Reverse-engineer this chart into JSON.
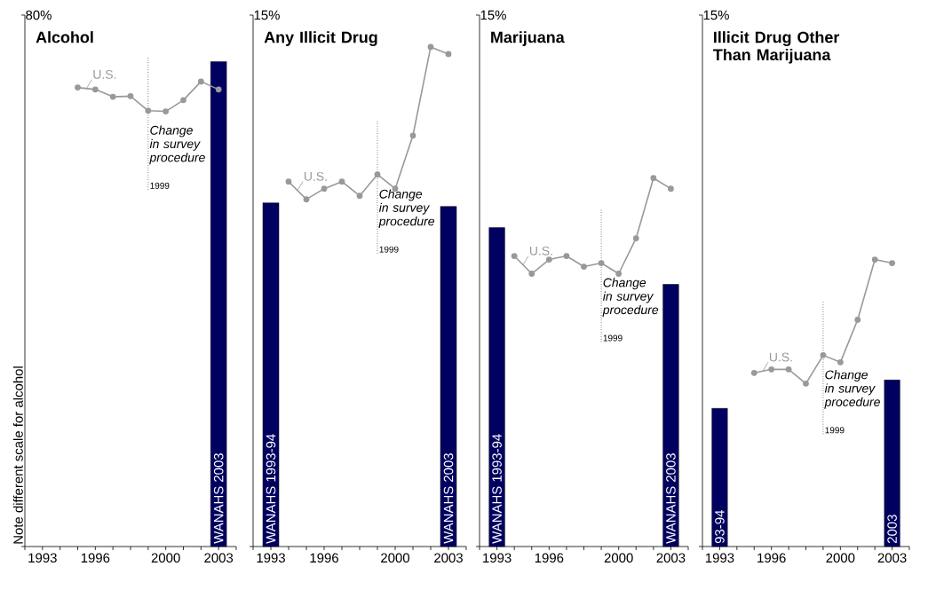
{
  "chart_data": [
    {
      "type": "bar",
      "title": "Alcohol",
      "xlim": [
        1992,
        2004
      ],
      "ylim": [
        0,
        80
      ],
      "xticks": [
        {
          "value": 1992,
          "label": null
        },
        1993,
        {
          "value": 1994,
          "label": null
        },
        {
          "value": 1995,
          "label": null
        },
        1996,
        {
          "value": 1997,
          "label": null
        },
        {
          "value": 1998,
          "label": null
        },
        {
          "value": 1999,
          "label": null
        },
        2000,
        {
          "value": 2001,
          "label": null
        },
        {
          "value": 2002,
          "label": null
        },
        2003,
        {
          "value": 2004,
          "label": null
        }
      ],
      "yticks": [
        {
          "value": 0,
          "label": null
        },
        {
          "value": 80,
          "label": "80%"
        }
      ],
      "marker": "circle",
      "series": [
        {
          "x": [
            2003
          ],
          "values": [
            73.0
          ],
          "color": "#000060"
        },
        {
          "type": "line",
          "name": "U.S.",
          "x": [
            1995,
            1996,
            1997,
            1998,
            1999,
            2000,
            2001,
            2002,
            2003
          ],
          "values": [
            69.1,
            68.8,
            67.7,
            67.8,
            65.6,
            65.5,
            67.2,
            70.0,
            68.8
          ],
          "color": "#999999"
        }
      ],
      "ref_lines": [
        {
          "axis": "x",
          "value": 1999,
          "label": "1999",
          "line_style": "dotted"
        }
      ],
      "annotations": [
        {
          "text": "Change in survey procedure",
          "x": 1999
        },
        {
          "text": "WANAHS 2003",
          "x": 2003,
          "y": 0
        },
        "Note different scale for alcohol"
      ]
    },
    {
      "type": "bar",
      "title": "Any Illicit Drug",
      "xlim": [
        1992,
        2004
      ],
      "ylim": [
        0,
        15
      ],
      "xticks": [
        {
          "value": 1992,
          "label": null
        },
        1993,
        {
          "value": 1994,
          "label": null
        },
        {
          "value": 1995,
          "label": null
        },
        1996,
        {
          "value": 1997,
          "label": null
        },
        {
          "value": 1998,
          "label": null
        },
        {
          "value": 1999,
          "label": null
        },
        2000,
        {
          "value": 2001,
          "label": null
        },
        {
          "value": 2002,
          "label": null
        },
        2003,
        {
          "value": 2004,
          "label": null
        }
      ],
      "yticks": [
        {
          "value": 0,
          "label": null
        },
        {
          "value": 15,
          "label": "15%"
        }
      ],
      "marker": "circle",
      "series": [
        {
          "x": [
            1993,
            2003
          ],
          "values": [
            9.7,
            9.6
          ],
          "color": "#000060"
        },
        {
          "type": "line",
          "name": "U.S.",
          "x": [
            1994,
            1995,
            1996,
            1997,
            1998,
            1999,
            2000,
            2001,
            2002,
            2003
          ],
          "values": [
            10.3,
            9.8,
            10.1,
            10.3,
            9.9,
            10.5,
            10.1,
            11.6,
            14.1,
            13.9
          ],
          "color": "#999999"
        }
      ],
      "ref_lines": [
        {
          "axis": "x",
          "value": 1999,
          "label": "1999",
          "line_style": "dotted"
        }
      ],
      "annotations": [
        {
          "text": "Change in survey procedure",
          "x": 1999
        },
        {
          "text": "WANAHS 1993-94",
          "x": 1993,
          "y": 0
        },
        {
          "text": "WANAHS 2003",
          "x": 2003,
          "y": 0
        }
      ]
    },
    {
      "type": "bar",
      "title": "Marijuana",
      "xlim": [
        1992,
        2004
      ],
      "ylim": [
        0,
        15
      ],
      "xticks": [
        {
          "value": 1992,
          "label": null
        },
        1993,
        {
          "value": 1994,
          "label": null
        },
        {
          "value": 1995,
          "label": null
        },
        1996,
        {
          "value": 1997,
          "label": null
        },
        {
          "value": 1998,
          "label": null
        },
        {
          "value": 1999,
          "label": null
        },
        2000,
        {
          "value": 2001,
          "label": null
        },
        {
          "value": 2002,
          "label": null
        },
        2003,
        {
          "value": 2004,
          "label": null
        }
      ],
      "yticks": [
        {
          "value": 0,
          "label": null
        },
        {
          "value": 15,
          "label": "15%"
        }
      ],
      "marker": "circle",
      "series": [
        {
          "x": [
            1993,
            2003
          ],
          "values": [
            9.0,
            7.4
          ],
          "color": "#000060"
        },
        {
          "type": "line",
          "name": "U.S.",
          "x": [
            1994,
            1995,
            1996,
            1997,
            1998,
            1999,
            2000,
            2001,
            2002,
            2003
          ],
          "values": [
            8.2,
            7.7,
            8.1,
            8.2,
            7.9,
            8.0,
            7.7,
            8.7,
            10.4,
            10.1
          ],
          "color": "#999999"
        }
      ],
      "ref_lines": [
        {
          "axis": "x",
          "value": 1999,
          "label": "1999",
          "line_style": "dotted"
        }
      ],
      "annotations": [
        {
          "text": "Change in survey procedure",
          "x": 1999
        },
        {
          "text": "WANAHS 1993-94",
          "x": 1993,
          "y": 0
        },
        {
          "text": "WANAHS 2003",
          "x": 2003,
          "y": 0
        }
      ]
    },
    {
      "type": "bar",
      "title": "Illicit Drug Other Than Marijuana",
      "xlim": [
        1992,
        2004
      ],
      "ylim": [
        0,
        15
      ],
      "xticks": [
        {
          "value": 1992,
          "label": null
        },
        1993,
        {
          "value": 1994,
          "label": null
        },
        {
          "value": 1995,
          "label": null
        },
        1996,
        {
          "value": 1997,
          "label": null
        },
        {
          "value": 1998,
          "label": null
        },
        {
          "value": 1999,
          "label": null
        },
        2000,
        {
          "value": 2001,
          "label": null
        },
        {
          "value": 2002,
          "label": null
        },
        2003,
        {
          "value": 2004,
          "label": null
        }
      ],
      "yticks": [
        {
          "value": 0,
          "label": null
        },
        {
          "value": 15,
          "label": "15%"
        }
      ],
      "marker": "circle",
      "series": [
        {
          "x": [
            1993,
            2003
          ],
          "values": [
            3.9,
            4.7
          ],
          "color": "#000060"
        },
        {
          "type": "line",
          "name": "U.S.",
          "x": [
            1995,
            1996,
            1997,
            1998,
            1999,
            2000,
            2001,
            2002,
            2003
          ],
          "values": [
            4.9,
            5.0,
            5.0,
            4.6,
            5.4,
            5.2,
            6.4,
            8.1,
            8.0
          ],
          "color": "#999999"
        }
      ],
      "ref_lines": [
        {
          "axis": "x",
          "value": 1999,
          "label": "1999",
          "line_style": "dotted"
        }
      ],
      "annotations": [
        {
          "text": "Change in survey procedure",
          "x": 1999
        },
        {
          "text": "93-94",
          "x": 1993,
          "y": 0
        },
        {
          "text": "2003",
          "x": 2003,
          "y": 0
        }
      ]
    }
  ]
}
